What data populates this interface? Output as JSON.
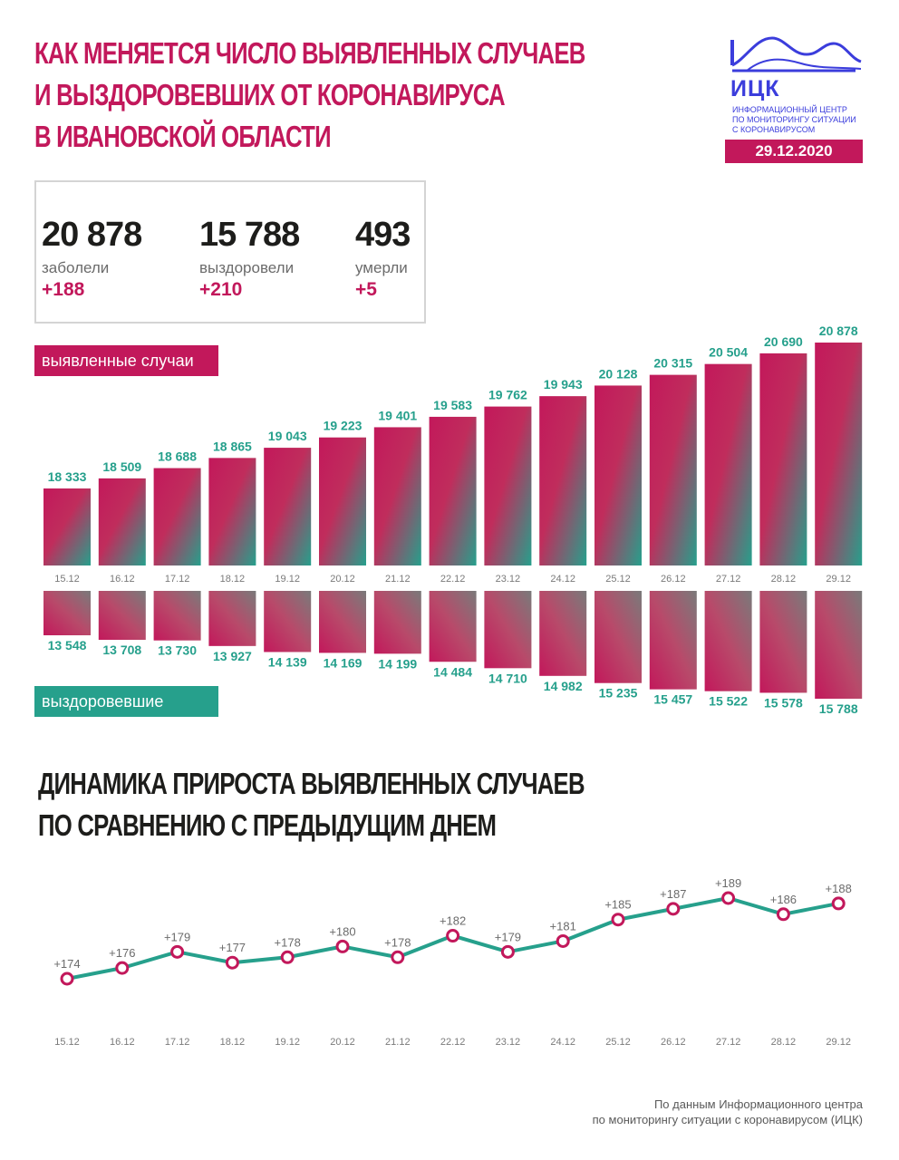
{
  "header": {
    "title_lines": [
      "Как меняется число выявленных случаев",
      "и выздоровевших от коронавируса",
      "в Ивановской области"
    ],
    "logo_abbr": "ИЦК",
    "logo_text_lines": [
      "Информационный центр",
      "по мониторингу ситуации",
      "с коронавирусом"
    ],
    "date": "29.12.2020"
  },
  "stats": [
    {
      "value": "20 878",
      "label": "заболели",
      "delta": "+188"
    },
    {
      "value": "15 788",
      "label": "выздоровели",
      "delta": "+210"
    },
    {
      "value": "493",
      "label": "умерли",
      "delta": "+5"
    }
  ],
  "colors": {
    "accent": "#c2185b",
    "teal": "#26a08c",
    "navy": "#3b3ddc"
  },
  "chart_data": [
    {
      "type": "bar",
      "series_label": "выявленные случаи",
      "categories": [
        "15.12",
        "16.12",
        "17.12",
        "18.12",
        "19.12",
        "20.12",
        "21.12",
        "22.12",
        "23.12",
        "24.12",
        "25.12",
        "26.12",
        "27.12",
        "28.12",
        "29.12"
      ],
      "values": [
        18333,
        18509,
        18688,
        18865,
        19043,
        19223,
        19401,
        19583,
        19762,
        19943,
        20128,
        20315,
        20504,
        20690,
        20878
      ],
      "value_labels": [
        "18 333",
        "18 509",
        "18 688",
        "18 865",
        "19 043",
        "19 223",
        "19 401",
        "19 583",
        "19 762",
        "19 943",
        "20 128",
        "20 315",
        "20 504",
        "20 690",
        "20 878"
      ]
    },
    {
      "type": "bar",
      "series_label": "выздоровевшие",
      "categories": [
        "15.12",
        "16.12",
        "17.12",
        "18.12",
        "19.12",
        "20.12",
        "21.12",
        "22.12",
        "23.12",
        "24.12",
        "25.12",
        "26.12",
        "27.12",
        "28.12",
        "29.12"
      ],
      "values": [
        13548,
        13708,
        13730,
        13927,
        14139,
        14169,
        14199,
        14484,
        14710,
        14982,
        15235,
        15457,
        15522,
        15578,
        15788
      ],
      "value_labels": [
        "13 548",
        "13 708",
        "13 730",
        "13 927",
        "14 139",
        "14 169",
        "14 199",
        "14 484",
        "14 710",
        "14 982",
        "15 235",
        "15 457",
        "15 522",
        "15 578",
        "15 788"
      ]
    },
    {
      "type": "line",
      "title_lines": [
        "Динамика прироста выявленных случаев",
        "по сравнению с предыдущим днем"
      ],
      "categories": [
        "15.12",
        "16.12",
        "17.12",
        "18.12",
        "19.12",
        "20.12",
        "21.12",
        "22.12",
        "23.12",
        "24.12",
        "25.12",
        "26.12",
        "27.12",
        "28.12",
        "29.12"
      ],
      "values": [
        174,
        176,
        179,
        177,
        178,
        180,
        178,
        182,
        179,
        181,
        185,
        187,
        189,
        186,
        188
      ],
      "value_labels": [
        "+174",
        "+176",
        "+179",
        "+177",
        "+178",
        "+180",
        "+178",
        "+182",
        "+179",
        "+181",
        "+185",
        "+187",
        "+189",
        "+186",
        "+188"
      ]
    }
  ],
  "footer": {
    "source_lines": [
      "По данным Информационного центра",
      "по мониторингу ситуации с коронавирусом (ИЦК)"
    ]
  }
}
